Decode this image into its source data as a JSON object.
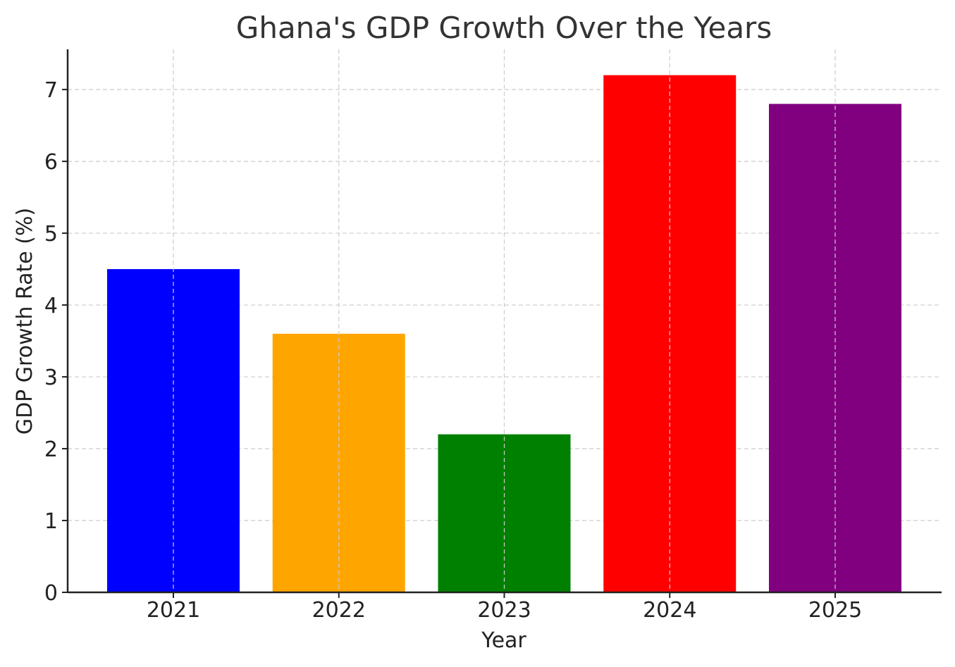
{
  "chart_data": {
    "type": "bar",
    "title": "Ghana's GDP Growth Over the Years",
    "xlabel": "Year",
    "ylabel": "GDP Growth Rate (%)",
    "categories": [
      "2021",
      "2022",
      "2023",
      "2024",
      "2025"
    ],
    "values": [
      4.5,
      3.6,
      2.2,
      7.2,
      6.8
    ],
    "colors": [
      "#0000ff",
      "#ffa500",
      "#008000",
      "#ff0000",
      "#800080"
    ],
    "ylim": [
      0,
      7.56
    ],
    "yticks": [
      0,
      1,
      2,
      3,
      4,
      5,
      6,
      7
    ],
    "grid": true
  }
}
